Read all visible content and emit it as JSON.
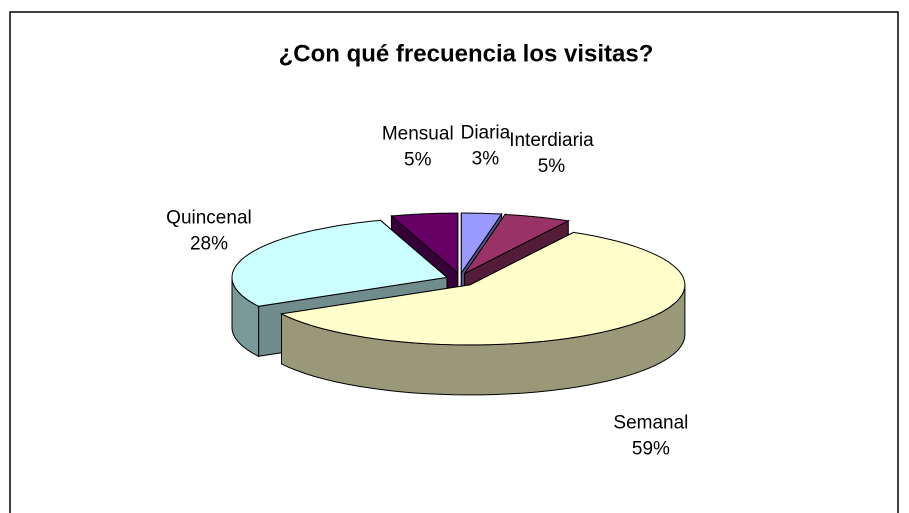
{
  "chart_data": {
    "type": "pie",
    "title": "¿Con qué frecuencia los visitas?",
    "categories": [
      "Diaria",
      "Interdiaria",
      "Semanal",
      "Quincenal",
      "Mensual"
    ],
    "values": [
      3,
      5,
      59,
      28,
      5
    ],
    "value_labels": [
      "3%",
      "5%",
      "59%",
      "28%",
      "5%"
    ],
    "colors": [
      "#9999ff",
      "#993366",
      "#ffffcc",
      "#ccffff",
      "#660066"
    ]
  }
}
